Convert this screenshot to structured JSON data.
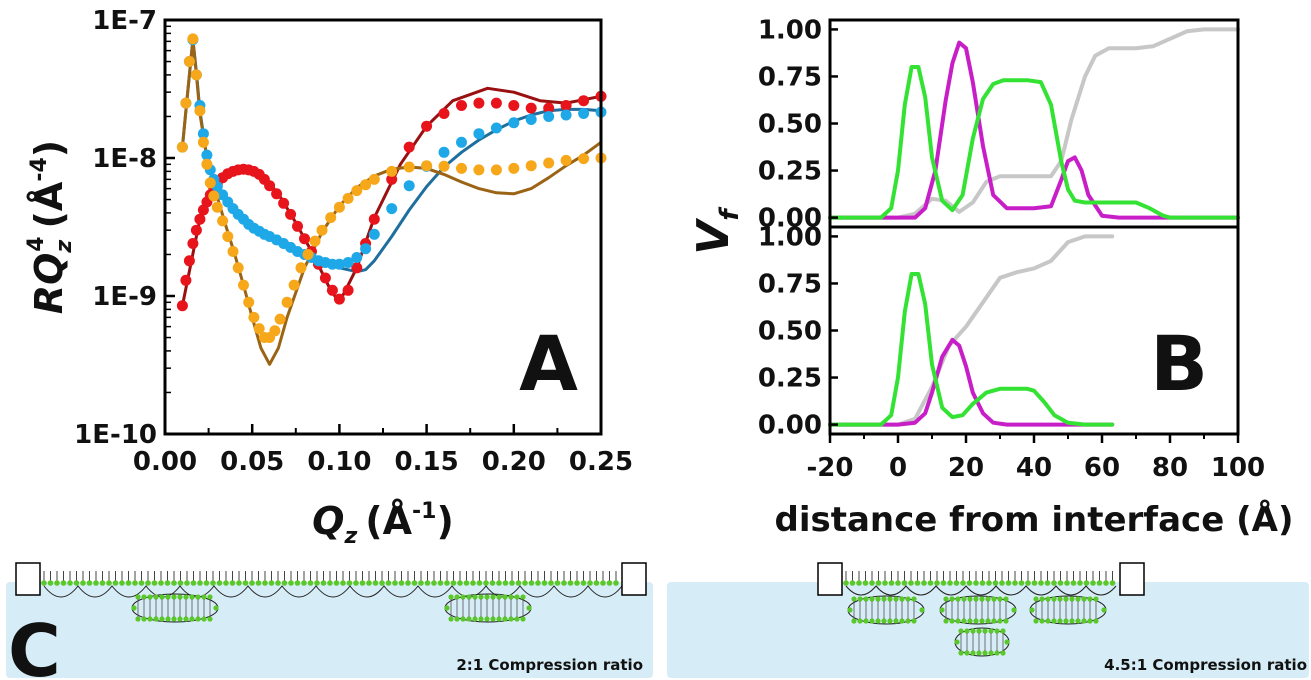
{
  "panel_a": {
    "letter": "A",
    "y_title": "RQ",
    "y_title_sub": "z",
    "y_title_sup": "4",
    "y_title_unit_open": "(Å",
    "y_title_unit_sup": "-4",
    "y_title_unit_close": ")",
    "x_title": "Q",
    "x_title_sub": "z",
    "x_title_unit_open": "(Å",
    "x_title_unit_sup": "-1",
    "x_title_unit_close": ")"
  },
  "panel_b": {
    "letter": "B",
    "y_title": "V",
    "y_title_sub": "f",
    "x_title": "distance from interface (Å)"
  },
  "panel_c": {
    "letter": "C",
    "left_caption": "2:1 Compression ratio",
    "right_caption": "4.5:1 Compression ratio"
  },
  "colors": {
    "red": "#e8141c",
    "dark_red": "#9a0f0f",
    "blue_pts": "#1fa8e8",
    "blue_line": "#1e6e9e",
    "orange_pts": "#f6a81a",
    "brown_line": "#9a6414",
    "green": "#33e233",
    "magenta": "#c81ec8",
    "grey": "#c7c7c7",
    "water": "#d6ecf6",
    "lipid": "#5ac82a"
  },
  "chart_data": [
    {
      "type": "scatter",
      "panel": "A",
      "yscale": "log",
      "xlim": [
        0.0,
        0.25
      ],
      "ylim": [
        1e-10,
        1e-07
      ],
      "x_ticks": [
        "0.00",
        "0.05",
        "0.10",
        "0.15",
        "0.20",
        "0.25"
      ],
      "y_ticks": [
        "1E-10",
        "1E-9",
        "1E-8",
        "1E-7"
      ],
      "series": [
        {
          "style": "points",
          "color": "red",
          "x": [
            0.01,
            0.012,
            0.014,
            0.016,
            0.018,
            0.02,
            0.022,
            0.024,
            0.026,
            0.028,
            0.03,
            0.033,
            0.036,
            0.039,
            0.042,
            0.045,
            0.048,
            0.051,
            0.054,
            0.057,
            0.06,
            0.064,
            0.068,
            0.072,
            0.076,
            0.08,
            0.084,
            0.088,
            0.092,
            0.096,
            0.1,
            0.105,
            0.11,
            0.115,
            0.12,
            0.13,
            0.14,
            0.15,
            0.16,
            0.17,
            0.18,
            0.19,
            0.2,
            0.21,
            0.22,
            0.23,
            0.24,
            0.25
          ],
          "y": [
            8.5e-10,
            1.3e-09,
            1.8e-09,
            2.4e-09,
            3e-09,
            3.6e-09,
            4.2e-09,
            4.8e-09,
            5.4e-09,
            6e-09,
            6.5e-09,
            7.2e-09,
            7.7e-09,
            8e-09,
            8.2e-09,
            8.3e-09,
            8.2e-09,
            8e-09,
            7.6e-09,
            7e-09,
            6.3e-09,
            5.5e-09,
            4.7e-09,
            3.9e-09,
            3.2e-09,
            2.6e-09,
            2.1e-09,
            1.7e-09,
            1.35e-09,
            1.1e-09,
            9.5e-10,
            1.1e-09,
            1.6e-09,
            2.4e-09,
            3.6e-09,
            7e-09,
            1.2e-08,
            1.7e-08,
            2.1e-08,
            2.4e-08,
            2.5e-08,
            2.5e-08,
            2.4e-08,
            2.3e-08,
            2.3e-08,
            2.4e-08,
            2.6e-08,
            2.8e-08
          ]
        },
        {
          "style": "line",
          "color": "dark_red",
          "x": [
            0.01,
            0.02,
            0.03,
            0.04,
            0.047,
            0.055,
            0.065,
            0.075,
            0.085,
            0.095,
            0.1,
            0.11,
            0.12,
            0.135,
            0.15,
            0.165,
            0.185,
            0.2,
            0.215,
            0.23,
            0.25
          ],
          "y": [
            8.5e-10,
            3.6e-09,
            6.5e-09,
            8.1e-09,
            8.3e-09,
            7.6e-09,
            5.5e-09,
            3.4e-09,
            2e-09,
            1.1e-09,
            9e-10,
            1.6e-09,
            3.7e-09,
            9e-09,
            1.7e-08,
            2.6e-08,
            3.2e-08,
            3e-08,
            2.6e-08,
            2.5e-08,
            2.8e-08
          ]
        },
        {
          "style": "points",
          "color": "blue_pts",
          "x": [
            0.01,
            0.012,
            0.014,
            0.016,
            0.018,
            0.02,
            0.022,
            0.024,
            0.026,
            0.028,
            0.03,
            0.033,
            0.036,
            0.039,
            0.042,
            0.045,
            0.048,
            0.051,
            0.054,
            0.057,
            0.06,
            0.064,
            0.068,
            0.072,
            0.076,
            0.08,
            0.084,
            0.088,
            0.092,
            0.096,
            0.1,
            0.105,
            0.11,
            0.115,
            0.12,
            0.13,
            0.14,
            0.15,
            0.16,
            0.17,
            0.18,
            0.19,
            0.2,
            0.21,
            0.22,
            0.23,
            0.24,
            0.25
          ],
          "y": [
            1.2e-08,
            2.5e-08,
            5e-08,
            7.2e-08,
            4e-08,
            2.4e-08,
            1.5e-08,
            1.05e-08,
            8.2e-09,
            7e-09,
            6.2e-09,
            5.4e-09,
            4.8e-09,
            4.3e-09,
            3.9e-09,
            3.6e-09,
            3.3e-09,
            3.1e-09,
            2.95e-09,
            2.8e-09,
            2.7e-09,
            2.55e-09,
            2.4e-09,
            2.25e-09,
            2.1e-09,
            2e-09,
            1.9e-09,
            1.8e-09,
            1.75e-09,
            1.7e-09,
            1.7e-09,
            1.75e-09,
            1.9e-09,
            2.2e-09,
            2.8e-09,
            4.3e-09,
            6.3e-09,
            8.7e-09,
            1.1e-08,
            1.3e-08,
            1.5e-08,
            1.65e-08,
            1.8e-08,
            1.9e-08,
            2e-08,
            2.05e-08,
            2.1e-08,
            2.15e-08
          ]
        },
        {
          "style": "line",
          "color": "blue_line",
          "x": [
            0.01,
            0.013,
            0.016,
            0.018,
            0.02,
            0.024,
            0.03,
            0.04,
            0.05,
            0.06,
            0.07,
            0.08,
            0.09,
            0.1,
            0.11,
            0.115,
            0.12,
            0.13,
            0.14,
            0.15,
            0.16,
            0.17,
            0.18,
            0.19,
            0.2,
            0.21,
            0.22,
            0.23,
            0.24,
            0.25
          ],
          "y": [
            1.2e-08,
            3e-08,
            7.2e-08,
            4.2e-08,
            2.2e-08,
            1e-08,
            6e-09,
            4e-09,
            3.2e-09,
            2.7e-09,
            2.3e-09,
            2e-09,
            1.75e-09,
            1.6e-09,
            1.5e-09,
            1.55e-09,
            1.8e-09,
            2.7e-09,
            4.2e-09,
            6.2e-09,
            8.6e-09,
            1.1e-08,
            1.35e-08,
            1.6e-08,
            1.85e-08,
            2.05e-08,
            2.2e-08,
            2.25e-08,
            2.25e-08,
            2.2e-08
          ]
        },
        {
          "style": "points",
          "color": "orange_pts",
          "x": [
            0.01,
            0.012,
            0.014,
            0.016,
            0.018,
            0.02,
            0.022,
            0.024,
            0.026,
            0.028,
            0.03,
            0.033,
            0.036,
            0.039,
            0.042,
            0.045,
            0.048,
            0.051,
            0.054,
            0.057,
            0.06,
            0.063,
            0.066,
            0.07,
            0.074,
            0.078,
            0.082,
            0.086,
            0.09,
            0.095,
            0.1,
            0.105,
            0.11,
            0.115,
            0.12,
            0.13,
            0.14,
            0.15,
            0.16,
            0.17,
            0.18,
            0.19,
            0.2,
            0.21,
            0.22,
            0.23,
            0.24,
            0.25
          ],
          "y": [
            1.2e-08,
            2.5e-08,
            5e-08,
            7.3e-08,
            4e-08,
            2.2e-08,
            1.3e-08,
            9e-09,
            6.6e-09,
            5.3e-09,
            4.4e-09,
            3.5e-09,
            2.7e-09,
            2.1e-09,
            1.6e-09,
            1.2e-09,
            9e-10,
            7e-10,
            5.8e-10,
            5e-10,
            5e-10,
            5.6e-10,
            6.8e-10,
            9e-10,
            1.2e-09,
            1.6e-09,
            2e-09,
            2.5e-09,
            3e-09,
            3.7e-09,
            4.4e-09,
            5.1e-09,
            5.8e-09,
            6.4e-09,
            7e-09,
            8e-09,
            8.6e-09,
            8.8e-09,
            8.7e-09,
            8.4e-09,
            8.2e-09,
            8.2e-09,
            8.4e-09,
            8.8e-09,
            9.2e-09,
            9.6e-09,
            9.9e-09,
            1e-08
          ]
        },
        {
          "style": "line",
          "color": "brown_line",
          "x": [
            0.01,
            0.013,
            0.016,
            0.018,
            0.02,
            0.024,
            0.03,
            0.035,
            0.04,
            0.045,
            0.05,
            0.055,
            0.06,
            0.065,
            0.07,
            0.08,
            0.09,
            0.1,
            0.11,
            0.12,
            0.13,
            0.14,
            0.15,
            0.16,
            0.17,
            0.18,
            0.19,
            0.2,
            0.21,
            0.22,
            0.23,
            0.24,
            0.25
          ],
          "y": [
            1.2e-08,
            3e-08,
            7.2e-08,
            4e-08,
            2.1e-08,
            1e-08,
            5.2e-09,
            3.2e-09,
            2e-09,
            1.2e-09,
            7e-10,
            4.2e-10,
            3.2e-10,
            4.2e-10,
            7e-10,
            1.6e-09,
            2.9e-09,
            4.5e-09,
            6.1e-09,
            7.4e-09,
            8.3e-09,
            8.6e-09,
            8.4e-09,
            7.6e-09,
            6.7e-09,
            6e-09,
            5.6e-09,
            5.5e-09,
            6e-09,
            7.2e-09,
            8.8e-09,
            1.05e-08,
            1.3e-08
          ]
        }
      ]
    },
    {
      "type": "line",
      "panel": "B-top",
      "xlim": [
        -20,
        100
      ],
      "ylim": [
        -0.05,
        1.05
      ],
      "y_ticks": [
        "0.00",
        "0.25",
        "0.50",
        "0.75",
        "1.00"
      ],
      "series": [
        {
          "color": "grey",
          "x": [
            -20,
            0,
            5,
            10,
            14,
            18,
            22,
            26,
            30,
            35,
            40,
            45,
            48,
            51,
            55,
            58,
            62,
            66,
            70,
            75,
            80,
            85,
            90,
            95,
            100
          ],
          "y": [
            0.0,
            0.0,
            0.02,
            0.1,
            0.09,
            0.03,
            0.08,
            0.19,
            0.22,
            0.22,
            0.22,
            0.22,
            0.3,
            0.52,
            0.75,
            0.86,
            0.9,
            0.9,
            0.9,
            0.91,
            0.95,
            0.99,
            1.0,
            1.0,
            1.0
          ]
        },
        {
          "color": "magenta",
          "x": [
            -20,
            0,
            5,
            8,
            11,
            14,
            16,
            18,
            20,
            22,
            25,
            28,
            32,
            36,
            40,
            45,
            48,
            50,
            52,
            54,
            56,
            60,
            65,
            70,
            100
          ],
          "y": [
            0.0,
            0.0,
            0.0,
            0.05,
            0.25,
            0.62,
            0.82,
            0.93,
            0.9,
            0.72,
            0.38,
            0.12,
            0.05,
            0.05,
            0.05,
            0.06,
            0.2,
            0.3,
            0.32,
            0.25,
            0.12,
            0.01,
            0.0,
            0.0,
            0.0
          ]
        },
        {
          "color": "green",
          "x": [
            -20,
            -5,
            -2,
            0,
            2,
            4,
            6,
            8,
            10,
            13,
            16,
            19,
            22,
            25,
            28,
            31,
            34,
            38,
            42,
            45,
            48,
            50,
            52,
            55,
            60,
            66,
            70,
            74,
            78,
            80,
            84,
            100
          ],
          "y": [
            0.0,
            0.0,
            0.05,
            0.25,
            0.6,
            0.8,
            0.8,
            0.64,
            0.32,
            0.09,
            0.04,
            0.12,
            0.42,
            0.63,
            0.71,
            0.73,
            0.73,
            0.73,
            0.72,
            0.6,
            0.3,
            0.15,
            0.09,
            0.08,
            0.08,
            0.08,
            0.08,
            0.05,
            0.01,
            0.0,
            0.0,
            0.0
          ]
        }
      ]
    },
    {
      "type": "line",
      "panel": "B-bottom",
      "xlim": [
        -20,
        100
      ],
      "ylim": [
        -0.05,
        1.05
      ],
      "x_ticks": [
        "-20",
        "0",
        "20",
        "40",
        "60",
        "80",
        "100"
      ],
      "y_ticks": [
        "0.00",
        "0.25",
        "0.50",
        "0.75",
        "1.00"
      ],
      "series": [
        {
          "color": "grey",
          "x": [
            -20,
            0,
            5,
            10,
            15,
            20,
            25,
            30,
            35,
            40,
            45,
            50,
            55,
            60,
            63
          ],
          "y": [
            0.0,
            0.0,
            0.03,
            0.2,
            0.42,
            0.52,
            0.65,
            0.78,
            0.81,
            0.83,
            0.87,
            0.97,
            1.0,
            1.0,
            1.0
          ]
        },
        {
          "color": "magenta",
          "x": [
            -20,
            0,
            5,
            8,
            10,
            13,
            16,
            18,
            20,
            22,
            25,
            28,
            32,
            40,
            63
          ],
          "y": [
            0.0,
            0.0,
            0.01,
            0.06,
            0.17,
            0.36,
            0.45,
            0.42,
            0.31,
            0.17,
            0.06,
            0.01,
            0.0,
            0.0,
            0.0
          ]
        },
        {
          "color": "green",
          "x": [
            -20,
            -5,
            -2,
            0,
            2,
            4,
            6,
            8,
            10,
            13,
            16,
            19,
            22,
            26,
            30,
            34,
            38,
            40,
            43,
            46,
            50,
            55,
            63
          ],
          "y": [
            0.0,
            0.0,
            0.05,
            0.25,
            0.6,
            0.8,
            0.8,
            0.64,
            0.32,
            0.09,
            0.04,
            0.05,
            0.11,
            0.17,
            0.19,
            0.19,
            0.19,
            0.18,
            0.12,
            0.05,
            0.01,
            0.0,
            0.0
          ]
        }
      ]
    }
  ]
}
